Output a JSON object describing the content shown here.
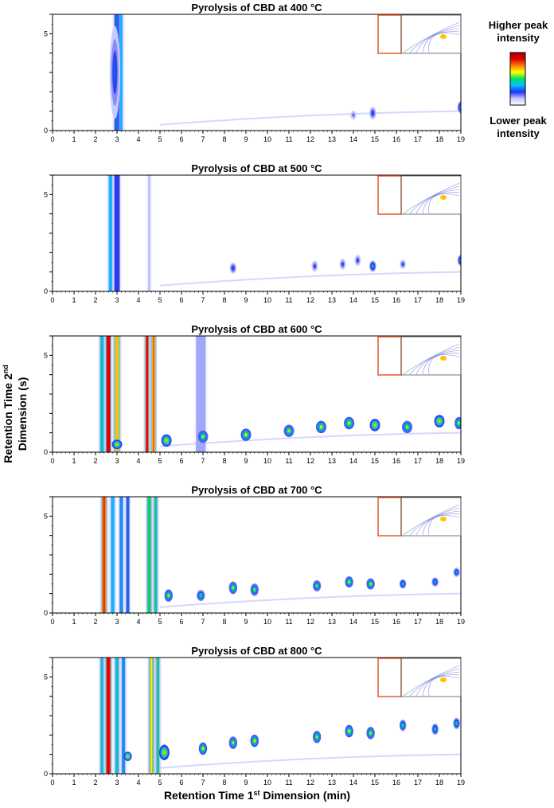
{
  "chart_data": [
    {
      "type": "heatmap",
      "title": "Pyrolysis of CBD at 400 °C",
      "x_ticks": [
        0,
        1,
        2,
        3,
        4,
        5,
        6,
        7,
        8,
        9,
        10,
        11,
        12,
        13,
        14,
        15,
        16,
        17,
        18,
        19
      ],
      "y_ticks": [
        0,
        5
      ],
      "xlim": [
        0,
        19
      ],
      "ylim": [
        0,
        6
      ],
      "streaks": [
        {
          "x": 3.0,
          "width": 0.25,
          "intensity": 0.35
        },
        {
          "x": 3.2,
          "width": 0.1,
          "intensity": 0.45
        }
      ],
      "blobs": [
        {
          "x": 2.9,
          "y": 3.0,
          "rx": 0.15,
          "ry": 1.5,
          "intensity": 0.35
        },
        {
          "x": 14.0,
          "y": 0.8,
          "rx": 0.08,
          "ry": 0.15,
          "intensity": 0.25
        },
        {
          "x": 14.9,
          "y": 0.9,
          "rx": 0.1,
          "ry": 0.2,
          "intensity": 0.35
        },
        {
          "x": 19.0,
          "y": 1.2,
          "rx": 0.1,
          "ry": 0.2,
          "intensity": 0.5
        }
      ]
    },
    {
      "type": "heatmap",
      "title": "Pyrolysis of CBD at 500 °C",
      "x_ticks": [
        0,
        1,
        2,
        3,
        4,
        5,
        6,
        7,
        8,
        9,
        10,
        11,
        12,
        13,
        14,
        15,
        16,
        17,
        18,
        19
      ],
      "y_ticks": [
        0,
        5
      ],
      "xlim": [
        0,
        19
      ],
      "ylim": [
        0,
        6
      ],
      "streaks": [
        {
          "x": 2.7,
          "width": 0.15,
          "intensity": 0.45
        },
        {
          "x": 3.0,
          "width": 0.25,
          "intensity": 0.3
        },
        {
          "x": 4.5,
          "width": 0.12,
          "intensity": 0.15
        }
      ],
      "blobs": [
        {
          "x": 8.4,
          "y": 1.2,
          "rx": 0.1,
          "ry": 0.18,
          "intensity": 0.35
        },
        {
          "x": 12.2,
          "y": 1.3,
          "rx": 0.08,
          "ry": 0.18,
          "intensity": 0.3
        },
        {
          "x": 13.5,
          "y": 1.4,
          "rx": 0.08,
          "ry": 0.18,
          "intensity": 0.3
        },
        {
          "x": 14.2,
          "y": 1.6,
          "rx": 0.08,
          "ry": 0.18,
          "intensity": 0.3
        },
        {
          "x": 14.9,
          "y": 1.3,
          "rx": 0.1,
          "ry": 0.18,
          "intensity": 0.5
        },
        {
          "x": 16.3,
          "y": 1.4,
          "rx": 0.07,
          "ry": 0.15,
          "intensity": 0.3
        },
        {
          "x": 19.0,
          "y": 1.6,
          "rx": 0.1,
          "ry": 0.18,
          "intensity": 0.5
        }
      ]
    },
    {
      "type": "heatmap",
      "title": "Pyrolysis of CBD at 600 °C",
      "x_ticks": [
        0,
        1,
        2,
        3,
        4,
        5,
        6,
        7,
        8,
        9,
        10,
        11,
        12,
        13,
        14,
        15,
        16,
        17,
        18,
        19
      ],
      "y_ticks": [
        0,
        5
      ],
      "xlim": [
        0,
        19
      ],
      "ylim": [
        0,
        6
      ],
      "streaks": [
        {
          "x": 2.3,
          "width": 0.15,
          "intensity": 0.5
        },
        {
          "x": 2.6,
          "width": 0.2,
          "intensity": 1.0
        },
        {
          "x": 3.0,
          "width": 0.2,
          "intensity": 0.7
        },
        {
          "x": 4.4,
          "width": 0.15,
          "intensity": 0.9
        },
        {
          "x": 4.7,
          "width": 0.15,
          "intensity": 0.8
        },
        {
          "x": 6.9,
          "width": 0.45,
          "intensity": 0.18
        }
      ],
      "blobs": [
        {
          "x": 3.0,
          "y": 0.4,
          "rx": 0.15,
          "ry": 0.15,
          "intensity": 0.8
        },
        {
          "x": 5.3,
          "y": 0.6,
          "rx": 0.15,
          "ry": 0.2,
          "intensity": 0.8
        },
        {
          "x": 7.0,
          "y": 0.8,
          "rx": 0.15,
          "ry": 0.2,
          "intensity": 0.7
        },
        {
          "x": 9.0,
          "y": 0.9,
          "rx": 0.15,
          "ry": 0.2,
          "intensity": 0.75
        },
        {
          "x": 11.0,
          "y": 1.1,
          "rx": 0.15,
          "ry": 0.2,
          "intensity": 0.7
        },
        {
          "x": 12.5,
          "y": 1.3,
          "rx": 0.15,
          "ry": 0.2,
          "intensity": 0.75
        },
        {
          "x": 13.8,
          "y": 1.5,
          "rx": 0.15,
          "ry": 0.2,
          "intensity": 0.75
        },
        {
          "x": 15.0,
          "y": 1.4,
          "rx": 0.15,
          "ry": 0.2,
          "intensity": 0.8
        },
        {
          "x": 16.5,
          "y": 1.3,
          "rx": 0.15,
          "ry": 0.2,
          "intensity": 0.7
        },
        {
          "x": 18.0,
          "y": 1.6,
          "rx": 0.15,
          "ry": 0.2,
          "intensity": 0.8
        },
        {
          "x": 18.9,
          "y": 1.5,
          "rx": 0.12,
          "ry": 0.2,
          "intensity": 0.7
        }
      ]
    },
    {
      "type": "heatmap",
      "title": "Pyrolysis of CBD at 700 °C",
      "x_ticks": [
        0,
        1,
        2,
        3,
        4,
        5,
        6,
        7,
        8,
        9,
        10,
        11,
        12,
        13,
        14,
        15,
        16,
        17,
        18,
        19
      ],
      "y_ticks": [
        0,
        5
      ],
      "xlim": [
        0,
        19
      ],
      "ylim": [
        0,
        6
      ],
      "streaks": [
        {
          "x": 2.4,
          "width": 0.2,
          "intensity": 0.85
        },
        {
          "x": 2.8,
          "width": 0.15,
          "intensity": 0.45
        },
        {
          "x": 3.2,
          "width": 0.15,
          "intensity": 0.4
        },
        {
          "x": 3.5,
          "width": 0.15,
          "intensity": 0.35
        },
        {
          "x": 4.5,
          "width": 0.15,
          "intensity": 0.6
        },
        {
          "x": 4.8,
          "width": 0.12,
          "intensity": 0.55
        }
      ],
      "blobs": [
        {
          "x": 5.4,
          "y": 0.9,
          "rx": 0.12,
          "ry": 0.2,
          "intensity": 0.7
        },
        {
          "x": 6.9,
          "y": 0.9,
          "rx": 0.12,
          "ry": 0.18,
          "intensity": 0.6
        },
        {
          "x": 8.4,
          "y": 1.3,
          "rx": 0.12,
          "ry": 0.2,
          "intensity": 0.7
        },
        {
          "x": 9.4,
          "y": 1.2,
          "rx": 0.12,
          "ry": 0.2,
          "intensity": 0.65
        },
        {
          "x": 12.3,
          "y": 1.4,
          "rx": 0.12,
          "ry": 0.18,
          "intensity": 0.65
        },
        {
          "x": 13.8,
          "y": 1.6,
          "rx": 0.12,
          "ry": 0.18,
          "intensity": 0.7
        },
        {
          "x": 14.8,
          "y": 1.5,
          "rx": 0.12,
          "ry": 0.18,
          "intensity": 0.7
        },
        {
          "x": 16.3,
          "y": 1.5,
          "rx": 0.1,
          "ry": 0.15,
          "intensity": 0.55
        },
        {
          "x": 17.8,
          "y": 1.6,
          "rx": 0.1,
          "ry": 0.15,
          "intensity": 0.5
        },
        {
          "x": 18.8,
          "y": 2.1,
          "rx": 0.1,
          "ry": 0.15,
          "intensity": 0.45
        }
      ]
    },
    {
      "type": "heatmap",
      "title": "Pyrolysis of CBD at 800 °C",
      "x_ticks": [
        0,
        1,
        2,
        3,
        4,
        5,
        6,
        7,
        8,
        9,
        10,
        11,
        12,
        13,
        14,
        15,
        16,
        17,
        18,
        19
      ],
      "y_ticks": [
        0,
        5
      ],
      "xlim": [
        0,
        19
      ],
      "ylim": [
        0,
        6
      ],
      "streaks": [
        {
          "x": 2.3,
          "width": 0.12,
          "intensity": 0.5
        },
        {
          "x": 2.6,
          "width": 0.22,
          "intensity": 0.95
        },
        {
          "x": 3.0,
          "width": 0.15,
          "intensity": 0.5
        },
        {
          "x": 3.3,
          "width": 0.15,
          "intensity": 0.4
        },
        {
          "x": 4.6,
          "width": 0.15,
          "intensity": 0.65
        },
        {
          "x": 4.9,
          "width": 0.12,
          "intensity": 0.55
        }
      ],
      "blobs": [
        {
          "x": 3.5,
          "y": 0.9,
          "rx": 0.12,
          "ry": 0.15,
          "intensity": 0.8
        },
        {
          "x": 5.2,
          "y": 1.1,
          "rx": 0.15,
          "ry": 0.25,
          "intensity": 0.8
        },
        {
          "x": 7.0,
          "y": 1.3,
          "rx": 0.12,
          "ry": 0.2,
          "intensity": 0.75
        },
        {
          "x": 8.4,
          "y": 1.6,
          "rx": 0.12,
          "ry": 0.2,
          "intensity": 0.7
        },
        {
          "x": 9.4,
          "y": 1.7,
          "rx": 0.12,
          "ry": 0.2,
          "intensity": 0.75
        },
        {
          "x": 12.3,
          "y": 1.9,
          "rx": 0.12,
          "ry": 0.2,
          "intensity": 0.7
        },
        {
          "x": 13.8,
          "y": 2.2,
          "rx": 0.12,
          "ry": 0.2,
          "intensity": 0.75
        },
        {
          "x": 14.8,
          "y": 2.1,
          "rx": 0.12,
          "ry": 0.2,
          "intensity": 0.7
        },
        {
          "x": 16.3,
          "y": 2.5,
          "rx": 0.1,
          "ry": 0.18,
          "intensity": 0.6
        },
        {
          "x": 17.8,
          "y": 2.3,
          "rx": 0.1,
          "ry": 0.18,
          "intensity": 0.55
        },
        {
          "x": 18.8,
          "y": 2.6,
          "rx": 0.1,
          "ry": 0.18,
          "intensity": 0.55
        }
      ]
    }
  ],
  "ylabel_line1": "Retention Time 2",
  "ylabel_sup": "nd",
  "ylabel_line2": "Dimension (s)",
  "xlabel_main": "Retention Time 1",
  "xlabel_sup": "st",
  "xlabel_rest": " Dimension (min)",
  "colorbar": {
    "top_line1": "Higher peak",
    "top_line2": "intensity",
    "bottom_line1": "Lower peak",
    "bottom_line2": "intensity",
    "colors": [
      "#ffffff",
      "#c8c8ff",
      "#2030ff",
      "#00c0ff",
      "#00e060",
      "#ffff00",
      "#ff8000",
      "#e00000",
      "#a00000"
    ]
  },
  "colors": {
    "inset_box": "#e05020",
    "axis": "#000000"
  }
}
